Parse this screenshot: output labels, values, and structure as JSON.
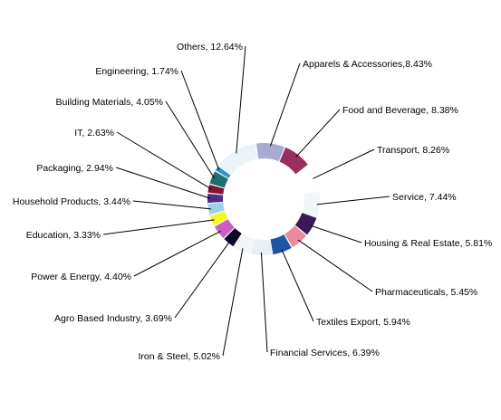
{
  "chart_data": {
    "type": "pie",
    "donut": true,
    "series": [
      {
        "label": "Apparels & Accessories,8.43%",
        "value": 8.43,
        "color": "#a9a9d1"
      },
      {
        "label": "Food and Beverage, 8.38%",
        "value": 8.38,
        "color": "#9a2e5c"
      },
      {
        "label": "Transport, 8.26%",
        "value": 8.26,
        "color": "#ffffff"
      },
      {
        "label": "Service, 7.44%",
        "value": 7.44,
        "color": "#f1f7f9"
      },
      {
        "label": "Housing & Real Estate, 5.81%",
        "value": 5.81,
        "color": "#3a1a56"
      },
      {
        "label": "Pharmaceuticals, 5.45%",
        "value": 5.45,
        "color": "#ea8a9e"
      },
      {
        "label": "Textiles Export, 5.94%",
        "value": 5.94,
        "color": "#1e55a6"
      },
      {
        "label": "Financial Services, 6.39%",
        "value": 6.39,
        "color": "#e8f0f6"
      },
      {
        "label": "Iron & Steel, 5.02%",
        "value": 5.02,
        "color": "#f1f5fa"
      },
      {
        "label": "Agro Based Industry, 3.69%",
        "value": 3.69,
        "color": "#0a0a28"
      },
      {
        "label": "Power & Energy, 4.40%",
        "value": 4.4,
        "color": "#cc5fc0"
      },
      {
        "label": "Education, 3.33%",
        "value": 3.33,
        "color": "#f6f61e"
      },
      {
        "label": "Household Products, 3.44%",
        "value": 3.44,
        "color": "#9bd1e6"
      },
      {
        "label": "Packaging, 2.94%",
        "value": 2.94,
        "color": "#4d2d88"
      },
      {
        "label": "IT, 2.63%",
        "value": 2.63,
        "color": "#8b1130"
      },
      {
        "label": "Building Materials, 4.05%",
        "value": 4.05,
        "color": "#1e6e6e"
      },
      {
        "label": "Engineering, 1.74%",
        "value": 1.74,
        "color": "#2e93c8"
      },
      {
        "label": "Others, 12.64%",
        "value": 12.64,
        "color": "#eaf3f8"
      }
    ]
  }
}
